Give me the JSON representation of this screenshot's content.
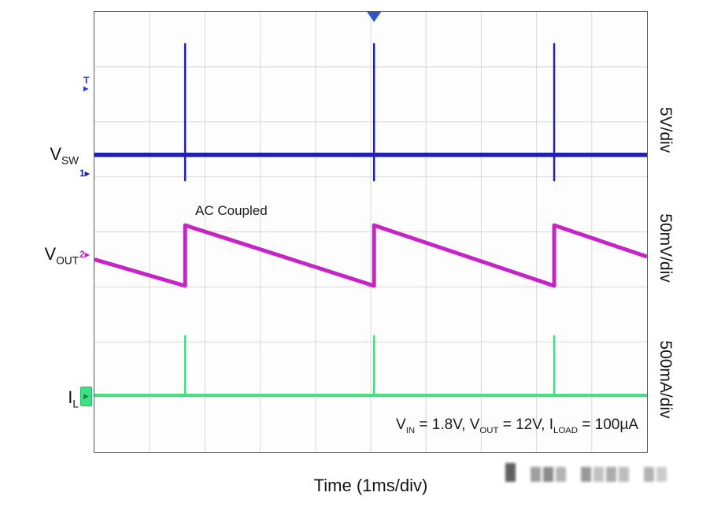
{
  "figure": {
    "left_labels": [
      {
        "main": "V",
        "sub": "SW"
      },
      {
        "main": "V",
        "sub": "OUT"
      },
      {
        "main": "I",
        "sub": "L"
      }
    ],
    "right_labels": [
      "5V/div",
      "50mV/div",
      "500mA/div"
    ],
    "x_axis_label": "Time (1ms/div)",
    "ac_coupled_label": "AC Coupled",
    "conditions_parts": [
      {
        "text": "V"
      },
      {
        "text": "IN"
      },
      {
        "text": " = 1.8V, V"
      },
      {
        "text": "OUT"
      },
      {
        "text": " = 12V, I"
      },
      {
        "text": "LOAD"
      },
      {
        "text": " = 100µA"
      }
    ],
    "markers": {
      "trigger": "T",
      "ch1": "1",
      "ch2": "2",
      "arrow": "▶",
      "trigger_top": "▼"
    }
  },
  "chart_data": {
    "type": "line",
    "xlabel": "Time (1ms/div)",
    "time_per_div": "1ms",
    "x_divisions": 10,
    "y_divisions": 8,
    "grid": true,
    "spike_times_div": [
      1.64,
      5.06,
      8.32
    ],
    "spike_period_div": 3.34,
    "trigger_position_div": 5.06,
    "series": [
      {
        "name": "VSW",
        "units_per_div": "5V/div",
        "color": "#2020b2",
        "kind": "baseline-spikes",
        "baseline_y_div": 2.6,
        "spike_top_y_div": 0.57,
        "spike_bottom_y_div": 3.08,
        "line_width": 5.5,
        "spike_width": 2.5
      },
      {
        "name": "VOUT",
        "units_per_div": "50mV/div",
        "color": "#c724c7",
        "kind": "sawtooth",
        "annotation": "AC Coupled",
        "start_y_div": 4.5,
        "peak_y_div": 3.88,
        "trough_y_div": 4.98,
        "end_y_div": 4.45,
        "line_width": 5
      },
      {
        "name": "IL",
        "units_per_div": "500mA/div",
        "color": "#3fdf83",
        "kind": "baseline-spikes",
        "baseline_y_div": 6.97,
        "spike_top_y_div": 5.88,
        "spike_bottom_y_div": 6.97,
        "line_width": 4,
        "spike_width": 2.5
      }
    ],
    "conditions_text": "VIN = 1.8V, VOUT = 12V, ILOAD = 100uA"
  },
  "watermark_blocks": [
    "#606060",
    "rgba(0,0,0,0)",
    "#9f9f9f",
    "#8b8b8b",
    "#b4b4b4",
    "rgba(0,0,0,0)",
    "#999999",
    "#c1c1c1",
    "#ababab",
    "#bdbdbd",
    "rgba(0,0,0,0)",
    "#b3b3b3",
    "#cccccc"
  ]
}
